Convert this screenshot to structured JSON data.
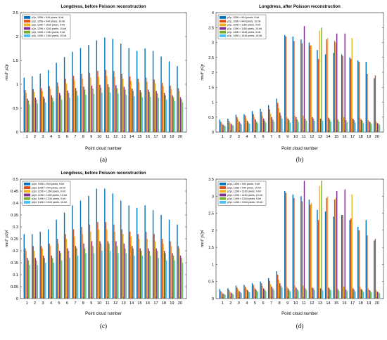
{
  "figure": {
    "captions": [
      "(a)",
      "(b)",
      "(c)",
      "(d)"
    ]
  },
  "chart_data": [
    {
      "type": "bar",
      "title": "Longdress, before Poisson reconstruction",
      "caption": "(a)",
      "xlabel": "Point cloud number",
      "ylabel": "rmsF p2p",
      "ylim": [
        0,
        2.5
      ],
      "yticks": [
        0,
        0.5,
        1,
        1.5,
        2,
        2.5
      ],
      "yticklabels": [
        "0",
        "0.5",
        "1",
        "1.5",
        "2",
        "2.5"
      ],
      "categories": [
        "1",
        "2",
        "3",
        "4",
        "5",
        "6",
        "7",
        "8",
        "9",
        "10",
        "11",
        "12",
        "13",
        "14",
        "15",
        "16",
        "17",
        "18",
        "19",
        "20"
      ],
      "legend": "top-left",
      "series": [
        {
          "name": "p2p, 1056 × 944 pixels, 9-bit",
          "color": "#0072BD",
          "values": [
            1.14,
            1.17,
            1.22,
            1.3,
            1.45,
            1.57,
            1.68,
            1.76,
            1.82,
            1.92,
            1.98,
            1.95,
            1.85,
            1.76,
            1.7,
            1.75,
            1.7,
            1.58,
            1.48,
            1.38
          ]
        },
        {
          "name": "p2p, 1056 × 944 pixels, 10-bit",
          "color": "#D95319",
          "values": [
            0.88,
            0.9,
            0.92,
            0.96,
            1.04,
            1.12,
            1.18,
            1.22,
            1.24,
            1.28,
            1.3,
            1.28,
            1.22,
            1.16,
            1.12,
            1.14,
            1.1,
            1.03,
            0.97,
            0.92
          ]
        },
        {
          "name": "p2p, 1296 × 1160 pixels, 9-bit",
          "color": "#EDB120",
          "values": [
            0.82,
            0.84,
            0.86,
            0.9,
            0.96,
            1.02,
            1.08,
            1.12,
            1.14,
            1.16,
            1.18,
            1.16,
            1.12,
            1.07,
            1.04,
            1.05,
            1.02,
            0.96,
            0.9,
            0.86
          ]
        },
        {
          "name": "p2p, 1296 × 1160 pixels, 10-bit",
          "color": "#7E2F8E",
          "values": [
            0.7,
            0.72,
            0.74,
            0.77,
            0.82,
            0.87,
            0.92,
            0.95,
            0.97,
            0.99,
            1.0,
            0.98,
            0.95,
            0.91,
            0.88,
            0.89,
            0.86,
            0.82,
            0.77,
            0.73
          ]
        },
        {
          "name": "p2p, 1496 × 1344 pixels, 9-bit",
          "color": "#77AC30",
          "values": [
            0.66,
            0.68,
            0.7,
            0.72,
            0.77,
            0.82,
            0.86,
            0.89,
            0.91,
            0.93,
            0.94,
            0.92,
            0.89,
            0.86,
            0.83,
            0.84,
            0.81,
            0.77,
            0.73,
            0.69
          ]
        },
        {
          "name": "p2p, 1496 × 1344 pixels, 10-bit",
          "color": "#4DBEEE",
          "values": [
            0.58,
            0.6,
            0.62,
            0.64,
            0.68,
            0.72,
            0.76,
            0.78,
            0.8,
            0.82,
            0.83,
            0.81,
            0.78,
            0.75,
            0.73,
            0.74,
            0.72,
            0.68,
            0.65,
            0.62
          ]
        }
      ]
    },
    {
      "type": "bar",
      "title": "Longdress, after Poisson reconstruction",
      "caption": "(b)",
      "xlabel": "Point cloud number",
      "ylabel": "rmsF p2p",
      "ylim": [
        0,
        4
      ],
      "yticks": [
        0,
        0.5,
        1,
        1.5,
        2,
        2.5,
        3,
        3.5,
        4
      ],
      "yticklabels": [
        "0",
        "0.5",
        "1",
        "1.5",
        "2",
        "2.5",
        "3",
        "3.5",
        "4"
      ],
      "categories": [
        "1",
        "2",
        "3",
        "4",
        "5",
        "6",
        "7",
        "8",
        "9",
        "10",
        "11",
        "12",
        "13",
        "14",
        "15",
        "16",
        "17",
        "18",
        "19",
        "20"
      ],
      "legend": "top-left",
      "series": [
        {
          "name": "p2p, 1056 × 944 pixels, 9-bit",
          "color": "#0072BD",
          "values": [
            0.42,
            0.45,
            0.58,
            0.6,
            0.7,
            0.78,
            0.9,
            1.12,
            3.25,
            3.2,
            3.1,
            3.0,
            2.75,
            2.6,
            2.65,
            2.6,
            2.5,
            2.4,
            2.35,
            1.8
          ]
        },
        {
          "name": "p2p, 1056 × 944 pixels, 10-bit",
          "color": "#D95319",
          "values": [
            0.35,
            0.38,
            0.5,
            0.55,
            0.6,
            0.68,
            0.76,
            0.98,
            3.2,
            3.05,
            2.98,
            2.9,
            2.45,
            3.1,
            3.05,
            2.55,
            2.45,
            2.35,
            1.95,
            1.9
          ]
        },
        {
          "name": "p2p, 1296 × 1160 pixels, 9-bit",
          "color": "#EDB120",
          "values": [
            0.3,
            0.32,
            0.42,
            0.45,
            0.5,
            0.55,
            0.62,
            0.8,
            0.5,
            0.55,
            0.55,
            2.9,
            3.4,
            3.15,
            3.0,
            0.5,
            3.15,
            0.48,
            0.4,
            0.35
          ]
        },
        {
          "name": "p2p, 1296 × 1160 pixels, 10-bit",
          "color": "#7E2F8E",
          "values": [
            0.25,
            0.28,
            0.35,
            0.38,
            0.42,
            0.45,
            0.5,
            0.65,
            0.45,
            0.5,
            3.55,
            0.5,
            0.45,
            0.48,
            3.3,
            3.3,
            0.45,
            0.42,
            0.35,
            0.3
          ]
        },
        {
          "name": "p2p, 1496 × 1344 pixels, 9-bit",
          "color": "#77AC30",
          "values": [
            0.22,
            0.24,
            0.3,
            0.32,
            0.35,
            0.38,
            0.42,
            0.55,
            0.4,
            0.42,
            0.45,
            0.45,
            3.5,
            0.42,
            0.42,
            0.4,
            0.4,
            0.38,
            0.32,
            0.28
          ]
        },
        {
          "name": "p2p, 1496 × 1344 pixels, 10-bit",
          "color": "#4DBEEE",
          "values": [
            0.2,
            0.22,
            0.26,
            0.28,
            0.3,
            0.32,
            0.35,
            0.45,
            0.32,
            0.35,
            0.38,
            0.38,
            0.38,
            0.35,
            0.35,
            0.33,
            0.32,
            0.3,
            0.27,
            0.25
          ]
        }
      ]
    },
    {
      "type": "bar",
      "title": "Longdress, before Poisson reconstruction",
      "caption": "(c)",
      "xlabel": "Point cloud number",
      "ylabel": "rmsF p2pl",
      "ylim": [
        0,
        0.5
      ],
      "yticks": [
        0,
        0.05,
        0.1,
        0.15,
        0.2,
        0.25,
        0.3,
        0.35,
        0.4,
        0.45,
        0.5
      ],
      "yticklabels": [
        "0",
        "0.05",
        "0.1",
        "0.15",
        "0.2",
        "0.25",
        "0.3",
        "0.35",
        "0.4",
        "0.45",
        "0.5"
      ],
      "categories": [
        "1",
        "2",
        "3",
        "4",
        "5",
        "6",
        "7",
        "8",
        "9",
        "10",
        "11",
        "12",
        "13",
        "14",
        "15",
        "16",
        "17",
        "18",
        "19",
        "20"
      ],
      "legend": "top-left",
      "series": [
        {
          "name": "p2pl, 1056 × 944 pixels, 9-bit",
          "color": "#0072BD",
          "values": [
            0.27,
            0.27,
            0.28,
            0.29,
            0.33,
            0.36,
            0.39,
            0.41,
            0.43,
            0.46,
            0.46,
            0.44,
            0.41,
            0.39,
            0.38,
            0.39,
            0.37,
            0.35,
            0.33,
            0.31
          ]
        },
        {
          "name": "p2pl, 1056 × 944 pixels, 10-bit",
          "color": "#D95319",
          "values": [
            0.21,
            0.22,
            0.22,
            0.23,
            0.25,
            0.27,
            0.29,
            0.3,
            0.31,
            0.32,
            0.32,
            0.31,
            0.29,
            0.28,
            0.27,
            0.28,
            0.27,
            0.25,
            0.24,
            0.22
          ]
        },
        {
          "name": "p2pl, 1296 × 1160 pixels, 9-bit",
          "color": "#EDB120",
          "values": [
            0.2,
            0.2,
            0.21,
            0.22,
            0.23,
            0.25,
            0.26,
            0.27,
            0.28,
            0.29,
            0.29,
            0.28,
            0.27,
            0.26,
            0.25,
            0.25,
            0.24,
            0.23,
            0.22,
            0.21
          ]
        },
        {
          "name": "p2pl, 1296 × 1160 pixels, 10-bit",
          "color": "#7E2F8E",
          "values": [
            0.17,
            0.17,
            0.18,
            0.18,
            0.2,
            0.21,
            0.22,
            0.23,
            0.24,
            0.24,
            0.24,
            0.24,
            0.23,
            0.22,
            0.21,
            0.21,
            0.21,
            0.2,
            0.19,
            0.18
          ]
        },
        {
          "name": "p2pl, 1496 × 1344 pixels, 9-bit",
          "color": "#77AC30",
          "values": [
            0.16,
            0.16,
            0.17,
            0.17,
            0.19,
            0.2,
            0.21,
            0.21,
            0.22,
            0.23,
            0.23,
            0.22,
            0.21,
            0.21,
            0.2,
            0.2,
            0.2,
            0.19,
            0.18,
            0.17
          ]
        },
        {
          "name": "p2pl, 1496 × 1344 pixels, 10-bit",
          "color": "#4DBEEE",
          "values": [
            0.14,
            0.14,
            0.15,
            0.15,
            0.16,
            0.17,
            0.18,
            0.19,
            0.19,
            0.2,
            0.2,
            0.19,
            0.19,
            0.18,
            0.18,
            0.18,
            0.17,
            0.16,
            0.16,
            0.15
          ]
        }
      ]
    },
    {
      "type": "bar",
      "title": "",
      "caption": "(d)",
      "xlabel": "Point cloud number",
      "ylabel": "rmsF p2pl",
      "ylim": [
        0,
        3.5
      ],
      "yticks": [
        0,
        0.5,
        1,
        1.5,
        2,
        2.5,
        3,
        3.5
      ],
      "yticklabels": [
        "0",
        "0.5",
        "1",
        "1.5",
        "2",
        "2.5",
        "3",
        "3.5"
      ],
      "categories": [
        "1",
        "2",
        "3",
        "4",
        "5",
        "6",
        "7",
        "8",
        "9",
        "10",
        "11",
        "12",
        "13",
        "14",
        "15",
        "16",
        "17",
        "18",
        "19",
        "20"
      ],
      "legend": "top-left",
      "series": [
        {
          "name": "p2pl, 1056 × 944 pixels, 9-bit",
          "color": "#0072BD",
          "values": [
            0.28,
            0.3,
            0.38,
            0.4,
            0.45,
            0.5,
            0.6,
            0.8,
            3.15,
            3.05,
            3.0,
            2.9,
            2.6,
            2.55,
            2.4,
            2.45,
            2.3,
            2.1,
            2.3,
            1.7
          ]
        },
        {
          "name": "p2pl, 1056 × 944 pixels, 10-bit",
          "color": "#D95319",
          "values": [
            0.22,
            0.25,
            0.32,
            0.35,
            0.4,
            0.45,
            0.52,
            0.7,
            3.1,
            2.95,
            2.85,
            2.75,
            2.3,
            2.95,
            2.9,
            2.45,
            2.35,
            2.0,
            1.85,
            1.75
          ]
        },
        {
          "name": "p2pl, 1296 × 1160 pixels, 9-bit",
          "color": "#EDB120",
          "values": [
            0.18,
            0.2,
            0.27,
            0.3,
            0.33,
            0.37,
            0.42,
            0.55,
            0.35,
            0.38,
            0.38,
            2.8,
            3.3,
            3.0,
            2.95,
            0.35,
            3.05,
            0.35,
            0.3,
            0.25
          ]
        },
        {
          "name": "p2pl, 1296 × 1160 pixels, 10-bit",
          "color": "#7E2F8E",
          "values": [
            0.15,
            0.17,
            0.22,
            0.25,
            0.28,
            0.3,
            0.35,
            0.45,
            0.3,
            0.32,
            3.45,
            0.32,
            0.3,
            0.32,
            3.15,
            3.2,
            0.3,
            0.28,
            0.25,
            0.2
          ]
        },
        {
          "name": "p2pl, 1496 × 1344 pixels, 9-bit",
          "color": "#77AC30",
          "values": [
            0.13,
            0.15,
            0.19,
            0.21,
            0.24,
            0.26,
            0.3,
            0.38,
            0.25,
            0.27,
            0.3,
            0.3,
            3.45,
            0.28,
            0.28,
            0.27,
            0.26,
            0.25,
            0.22,
            0.18
          ]
        },
        {
          "name": "p2pl, 1496 × 1344 pixels, 10-bit",
          "color": "#4DBEEE",
          "values": [
            0.11,
            0.12,
            0.16,
            0.18,
            0.2,
            0.22,
            0.25,
            0.32,
            0.21,
            0.23,
            0.25,
            0.25,
            0.24,
            0.24,
            0.23,
            0.22,
            0.21,
            0.2,
            0.18,
            0.15
          ]
        }
      ]
    }
  ]
}
